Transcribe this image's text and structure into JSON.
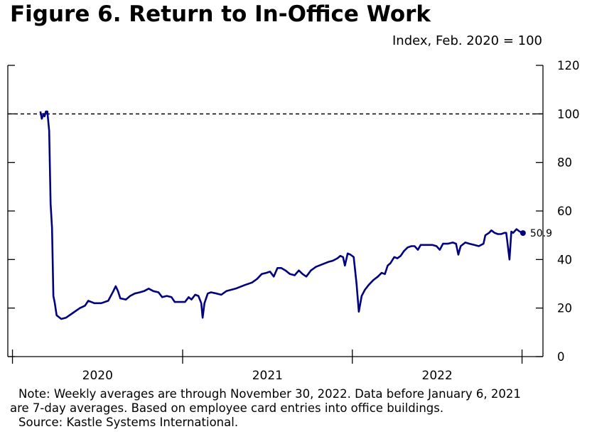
{
  "title": "Figure 6. Return to In-Office Work",
  "units": "Index, Feb. 2020 = 100",
  "notes": {
    "line1": "Note: Weekly averages are through November 30, 2022. Data before January 6, 2021",
    "line2": "are 7-day averages. Based on employee card entries into office buildings.",
    "line3": "Source: Kastle Systems International."
  },
  "chart_data": {
    "type": "line",
    "title": "Figure 6. Return to In-Office Work",
    "ylabel": "Index, Feb. 2020 = 100",
    "ylim": [
      0,
      120
    ],
    "yticks": [
      0,
      20,
      40,
      60,
      80,
      100,
      120
    ],
    "xlim": [
      "2019-12-22",
      "2023-02-15"
    ],
    "x_ticks": [
      "2020",
      "2021",
      "2022"
    ],
    "reference_line": {
      "y": 100,
      "style": "dashed"
    },
    "end_label": {
      "date": "2022-11-30",
      "value": 50.9,
      "text": "50.9"
    },
    "series": [
      {
        "color": "#000080",
        "points": [
          [
            "2020-03-01",
            101
          ],
          [
            "2020-03-04",
            98
          ],
          [
            "2020-03-08",
            100
          ],
          [
            "2020-03-10",
            99
          ],
          [
            "2020-03-13",
            101
          ],
          [
            "2020-03-16",
            101
          ],
          [
            "2020-03-18",
            97
          ],
          [
            "2020-03-20",
            93
          ],
          [
            "2020-03-23",
            63
          ],
          [
            "2020-03-26",
            53
          ],
          [
            "2020-03-29",
            25
          ],
          [
            "2020-04-01",
            22
          ],
          [
            "2020-04-05",
            17
          ],
          [
            "2020-04-15",
            15.5
          ],
          [
            "2020-04-25",
            16
          ],
          [
            "2020-05-10",
            18
          ],
          [
            "2020-05-25",
            20
          ],
          [
            "2020-06-05",
            21
          ],
          [
            "2020-06-12",
            23
          ],
          [
            "2020-06-25",
            22
          ],
          [
            "2020-07-10",
            22
          ],
          [
            "2020-07-25",
            23
          ],
          [
            "2020-08-05",
            27
          ],
          [
            "2020-08-10",
            29
          ],
          [
            "2020-08-15",
            27
          ],
          [
            "2020-08-20",
            24
          ],
          [
            "2020-09-01",
            23.5
          ],
          [
            "2020-09-10",
            25
          ],
          [
            "2020-09-20",
            26
          ],
          [
            "2020-10-01",
            26.5
          ],
          [
            "2020-10-10",
            27
          ],
          [
            "2020-10-20",
            28
          ],
          [
            "2020-10-30",
            27
          ],
          [
            "2020-11-10",
            26.5
          ],
          [
            "2020-11-18",
            24.5
          ],
          [
            "2020-11-28",
            25
          ],
          [
            "2020-12-08",
            24.5
          ],
          [
            "2020-12-15",
            22.5
          ],
          [
            "2020-12-25",
            22.5
          ],
          [
            "2021-01-06",
            22.5
          ],
          [
            "2021-01-14",
            24.5
          ],
          [
            "2021-01-20",
            23.5
          ],
          [
            "2021-01-28",
            25.5
          ],
          [
            "2021-02-04",
            25
          ],
          [
            "2021-02-10",
            22
          ],
          [
            "2021-02-13",
            16
          ],
          [
            "2021-02-17",
            22
          ],
          [
            "2021-02-24",
            26
          ],
          [
            "2021-03-03",
            26.5
          ],
          [
            "2021-03-15",
            26
          ],
          [
            "2021-03-25",
            25.5
          ],
          [
            "2021-04-05",
            27
          ],
          [
            "2021-04-25",
            28
          ],
          [
            "2021-05-15",
            29.5
          ],
          [
            "2021-05-30",
            30.5
          ],
          [
            "2021-06-10",
            32
          ],
          [
            "2021-06-20",
            34
          ],
          [
            "2021-06-30",
            34.5
          ],
          [
            "2021-07-08",
            35
          ],
          [
            "2021-07-16",
            33
          ],
          [
            "2021-07-24",
            36.5
          ],
          [
            "2021-08-01",
            36.5
          ],
          [
            "2021-08-10",
            35.5
          ],
          [
            "2021-08-20",
            34
          ],
          [
            "2021-08-30",
            33.5
          ],
          [
            "2021-09-08",
            35.5
          ],
          [
            "2021-09-16",
            34
          ],
          [
            "2021-09-24",
            33
          ],
          [
            "2021-10-04",
            35.5
          ],
          [
            "2021-10-15",
            37
          ],
          [
            "2021-10-28",
            38
          ],
          [
            "2021-11-10",
            39
          ],
          [
            "2021-11-20",
            39.5
          ],
          [
            "2021-11-30",
            40.5
          ],
          [
            "2021-12-06",
            41.5
          ],
          [
            "2021-12-12",
            41
          ],
          [
            "2021-12-16",
            37.5
          ],
          [
            "2021-12-22",
            42.5
          ],
          [
            "2021-12-28",
            42
          ],
          [
            "2022-01-04",
            41
          ],
          [
            "2022-01-10",
            30
          ],
          [
            "2022-01-15",
            18.5
          ],
          [
            "2022-01-21",
            25
          ],
          [
            "2022-01-28",
            27.5
          ],
          [
            "2022-02-05",
            29.5
          ],
          [
            "2022-02-15",
            31.5
          ],
          [
            "2022-02-25",
            33
          ],
          [
            "2022-03-05",
            34.5
          ],
          [
            "2022-03-12",
            34
          ],
          [
            "2022-03-18",
            37.5
          ],
          [
            "2022-03-24",
            38.5
          ],
          [
            "2022-04-01",
            41
          ],
          [
            "2022-04-08",
            40.5
          ],
          [
            "2022-04-15",
            41.5
          ],
          [
            "2022-04-22",
            43.5
          ],
          [
            "2022-04-30",
            45
          ],
          [
            "2022-05-08",
            45.5
          ],
          [
            "2022-05-15",
            45.5
          ],
          [
            "2022-05-22",
            44
          ],
          [
            "2022-05-28",
            46
          ],
          [
            "2022-06-10",
            46
          ],
          [
            "2022-06-22",
            46
          ],
          [
            "2022-07-01",
            45.5
          ],
          [
            "2022-07-08",
            44
          ],
          [
            "2022-07-15",
            46.5
          ],
          [
            "2022-07-25",
            46.5
          ],
          [
            "2022-08-05",
            47
          ],
          [
            "2022-08-12",
            46.5
          ],
          [
            "2022-08-17",
            42
          ],
          [
            "2022-08-22",
            45.5
          ],
          [
            "2022-09-01",
            47
          ],
          [
            "2022-09-10",
            46.5
          ],
          [
            "2022-09-20",
            46
          ],
          [
            "2022-09-30",
            45.5
          ],
          [
            "2022-10-05",
            46
          ],
          [
            "2022-10-10",
            46.5
          ],
          [
            "2022-10-14",
            50
          ],
          [
            "2022-10-22",
            51
          ],
          [
            "2022-10-27",
            52
          ],
          [
            "2022-11-03",
            51
          ],
          [
            "2022-11-10",
            50.5
          ],
          [
            "2022-11-17",
            50.5
          ],
          [
            "2022-11-24",
            51
          ],
          [
            "2022-11-28",
            51
          ],
          [
            "2022-11-30",
            48
          ],
          [
            "2022-12-05",
            40
          ],
          [
            "2022-12-09",
            51.5
          ],
          [
            "2022-12-13",
            51
          ],
          [
            "2022-12-20",
            52.5
          ],
          [
            "2022-12-27",
            51.5
          ],
          [
            "2023-01-03",
            50.9
          ]
        ]
      }
    ]
  }
}
